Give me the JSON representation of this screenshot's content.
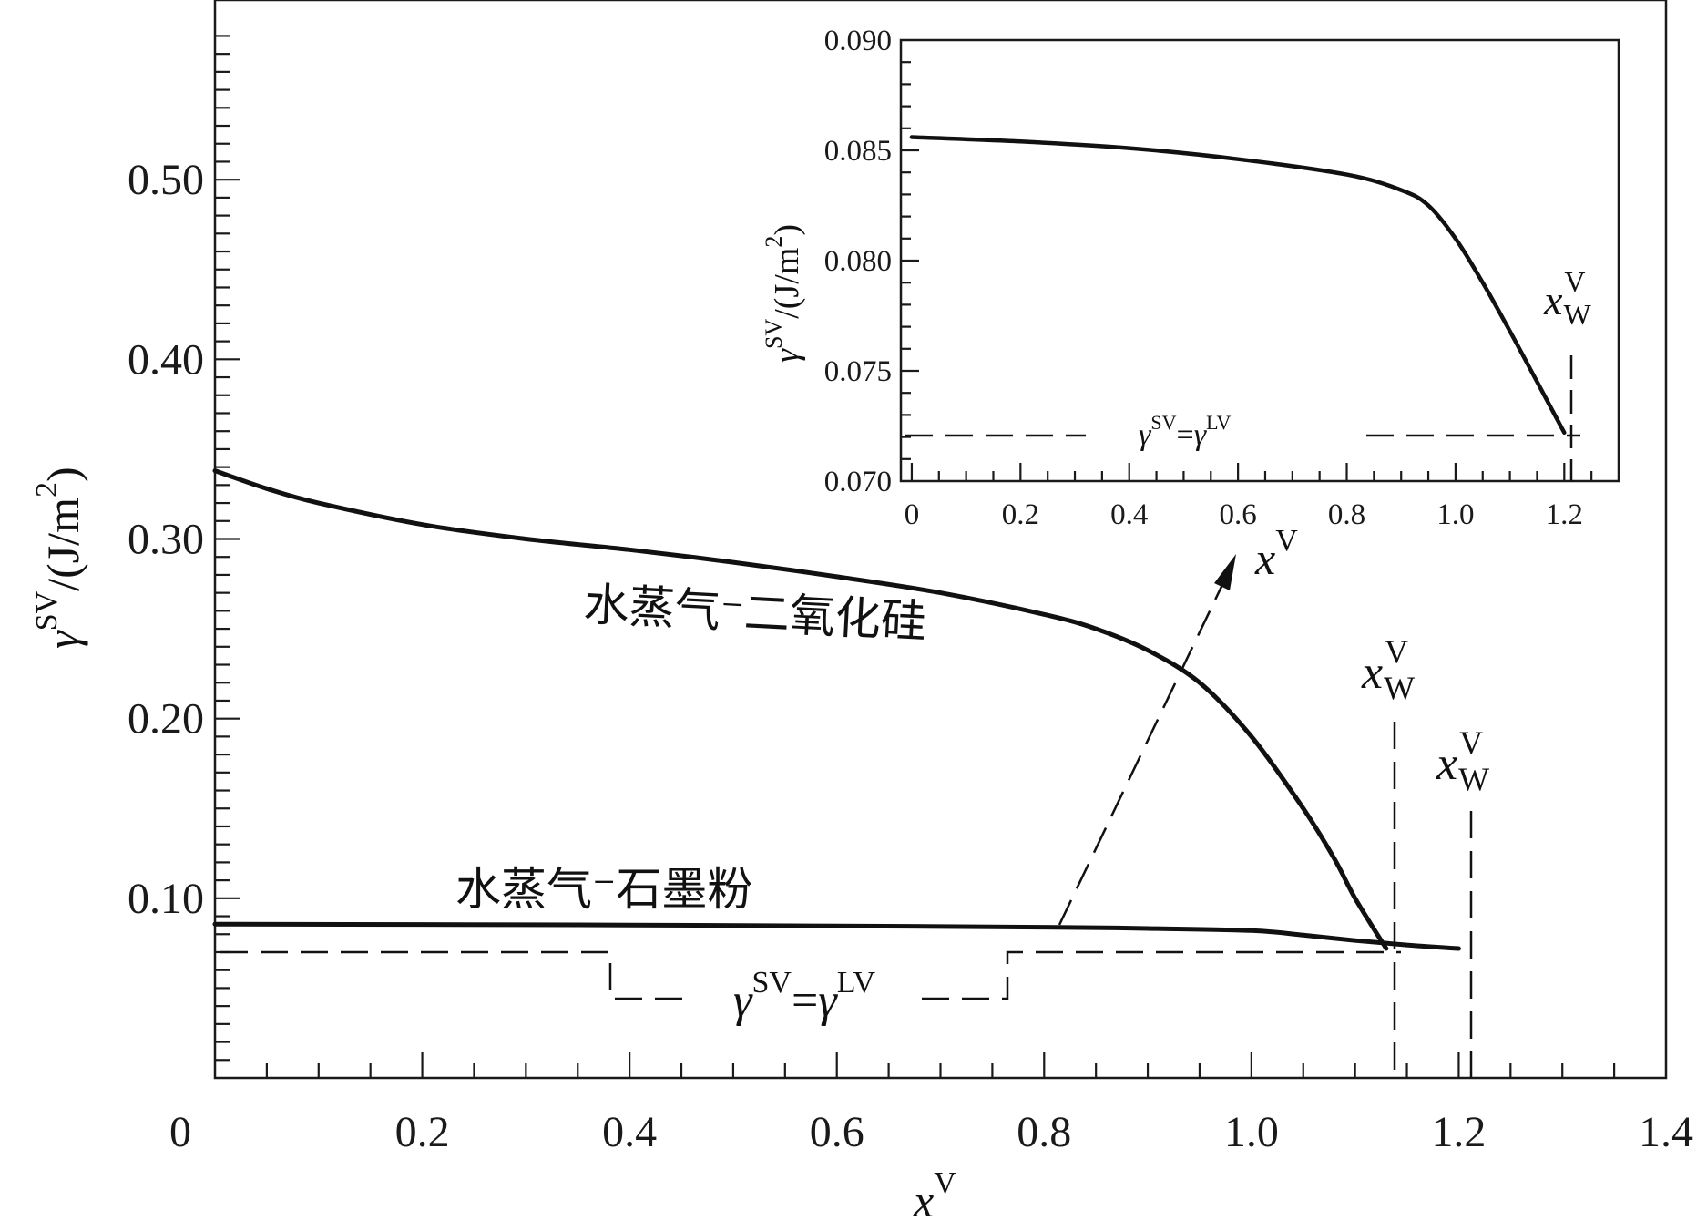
{
  "chart_data": [
    {
      "type": "line",
      "name": "main",
      "xlim": [
        0,
        1.4
      ],
      "ylim": [
        0,
        0.6
      ],
      "xticks": [
        0,
        0.2,
        0.4,
        0.6,
        0.8,
        1.0,
        1.2,
        1.4
      ],
      "xtick_labels": [
        "0",
        "0.2",
        "0.4",
        "0.6",
        "0.8",
        "1.0",
        "1.2",
        "1.4"
      ],
      "yticks": [
        0.1,
        0.2,
        0.3,
        0.4,
        0.5
      ],
      "ytick_labels": [
        "0.10",
        "0.20",
        "0.30",
        "0.40",
        "0.50"
      ],
      "xlabel": {
        "main": "x",
        "sup": "V"
      },
      "ylabel": {
        "main": "γ",
        "sup": "SV",
        "unit": "/(J/m",
        "unit_sup": "2",
        "unit_end": ")"
      },
      "series": [
        {
          "name": "水蒸气-二氧化硅",
          "x": [
            0,
            0.05,
            0.1,
            0.2,
            0.3,
            0.4,
            0.5,
            0.6,
            0.7,
            0.8,
            0.85,
            0.9,
            0.95,
            1.0,
            1.05,
            1.08,
            1.1,
            1.13
          ],
          "y": [
            0.338,
            0.328,
            0.32,
            0.308,
            0.3,
            0.294,
            0.287,
            0.279,
            0.27,
            0.258,
            0.25,
            0.238,
            0.22,
            0.19,
            0.15,
            0.122,
            0.1,
            0.072
          ]
        },
        {
          "name": "水蒸气-石墨粉",
          "x": [
            0,
            0.2,
            0.4,
            0.6,
            0.8,
            0.9,
            1.0,
            1.05,
            1.1,
            1.15,
            1.2
          ],
          "y": [
            0.0856,
            0.0854,
            0.0851,
            0.0846,
            0.0839,
            0.0832,
            0.082,
            0.0795,
            0.0765,
            0.074,
            0.072
          ]
        }
      ],
      "reference_line": {
        "label": {
          "a": "γ",
          "a_sup": "SV",
          "eq": "=",
          "b": "γ",
          "b_sup": "LV"
        },
        "y": 0.072
      },
      "markers": [
        {
          "label": {
            "main": "x",
            "sub": "W",
            "sup": "V"
          },
          "x": 1.13
        },
        {
          "label": {
            "main": "x",
            "sub": "W",
            "sup": "V"
          },
          "x": 1.2
        }
      ]
    },
    {
      "type": "line",
      "name": "inset",
      "xlim": [
        -0.02,
        1.3
      ],
      "ylim": [
        0.07,
        0.09
      ],
      "xticks": [
        0,
        0.2,
        0.4,
        0.6,
        0.8,
        1.0,
        1.2
      ],
      "xtick_labels": [
        "0",
        "0.2",
        "0.4",
        "0.6",
        "0.8",
        "1.0",
        "1.2"
      ],
      "yticks": [
        0.07,
        0.075,
        0.08,
        0.085,
        0.09
      ],
      "ytick_labels": [
        "0.070",
        "0.075",
        "0.080",
        "0.085",
        "0.090"
      ],
      "xlabel": {
        "main": "x",
        "sup": "V"
      },
      "ylabel": {
        "main": "γ",
        "sup": "SV",
        "unit": "/(J/m",
        "unit_sup": "2",
        "unit_end": ")"
      },
      "series": [
        {
          "name": "水蒸气-石墨粉",
          "x": [
            0,
            0.2,
            0.4,
            0.6,
            0.8,
            0.9,
            0.95,
            1.0,
            1.05,
            1.1,
            1.15,
            1.2
          ],
          "y": [
            0.0856,
            0.0854,
            0.0851,
            0.0846,
            0.0839,
            0.0832,
            0.0825,
            0.081,
            0.079,
            0.0768,
            0.0745,
            0.0722
          ]
        }
      ],
      "reference_line": {
        "label": {
          "a": "γ",
          "a_sup": "SV",
          "eq": "=",
          "b": "γ",
          "b_sup": "LV"
        },
        "y": 0.0722
      },
      "markers": [
        {
          "label": {
            "main": "x",
            "sub": "W",
            "sup": "V"
          },
          "x": 1.2
        }
      ]
    }
  ],
  "labels": {
    "silica": "水蒸气⁻二氧化硅",
    "graphite": "水蒸气⁻石墨粉"
  }
}
